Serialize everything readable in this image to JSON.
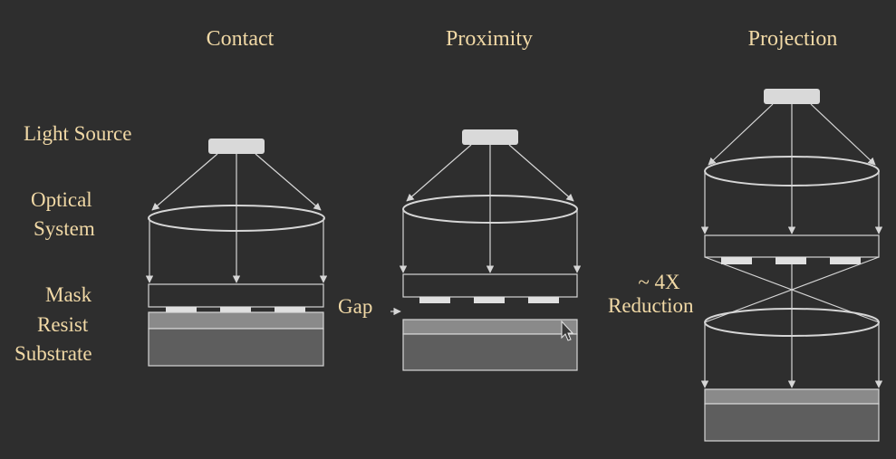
{
  "titles": {
    "contact": "Contact",
    "proximity": "Proximity",
    "projection": "Projection"
  },
  "labels": {
    "light_source": "Light Source",
    "optical_system_line1": "Optical",
    "optical_system_line2": "System",
    "mask": "Mask",
    "resist": "Resist",
    "substrate": "Substrate",
    "gap": "Gap",
    "reduction_line1": "~ 4X",
    "reduction_line2": "Reduction"
  },
  "colors": {
    "background": "#2e2e2e",
    "label_text": "#f1d9a6",
    "line": "#d6d6d6",
    "source_fill": "#d9d9d9",
    "resist_fill": "#8a8a8a",
    "substrate_fill": "#5e5e5e"
  }
}
